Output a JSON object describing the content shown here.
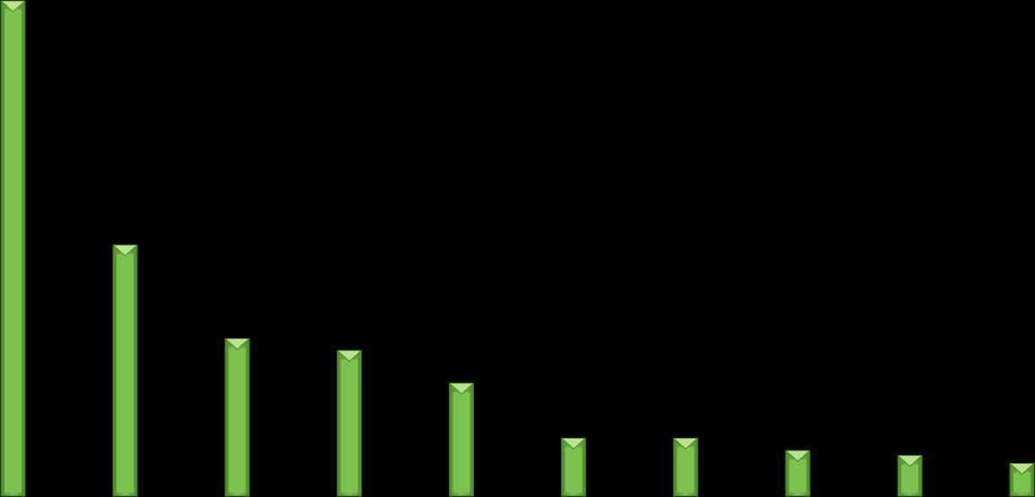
{
  "chart_data": {
    "type": "bar",
    "categories": [
      "",
      "",
      "",
      "",
      "",
      "",
      "",
      "",
      "",
      ""
    ],
    "values": [
      100,
      50.7,
      31.8,
      29.4,
      22.8,
      11.7,
      11.7,
      9.2,
      8.2,
      6.6
    ],
    "ylim": [
      0,
      100
    ],
    "grid": false,
    "legend": "none",
    "colors": {
      "background": "#000000",
      "bar_face": "#7cc24e",
      "bar_light": "#b6e38b",
      "bar_dark": "#4f8a2a",
      "bar_edge": "#3f7020"
    }
  }
}
